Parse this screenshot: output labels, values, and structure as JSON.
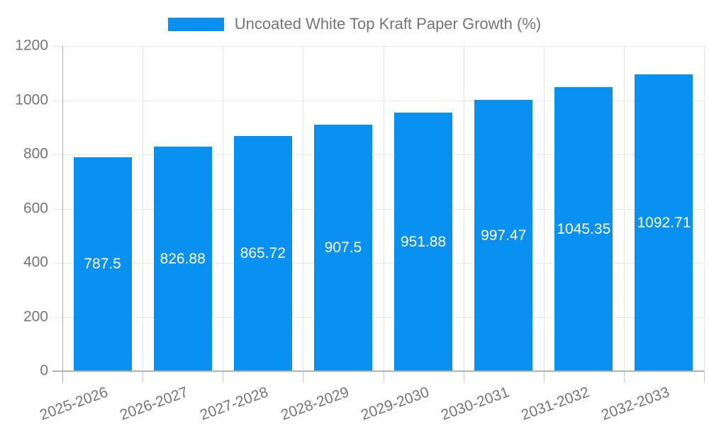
{
  "legend": {
    "label": "Uncoated White Top Kraft Paper Growth (%)"
  },
  "chart_data": {
    "type": "bar",
    "title": "Uncoated White Top Kraft Paper Growth (%)",
    "categories": [
      "2025-2026",
      "2026-2027",
      "2027-2028",
      "2028-2029",
      "2029-2030",
      "2030-2031",
      "2031-2032",
      "2032-2033"
    ],
    "values": [
      787.5,
      826.88,
      865.72,
      907.5,
      951.88,
      997.47,
      1045.35,
      1092.71
    ],
    "value_labels": [
      "787.5",
      "826.88",
      "865.72",
      "907.5",
      "951.88",
      "997.47",
      "1045.35",
      "1092.71"
    ],
    "xlabel": "",
    "ylabel": "",
    "ylim": [
      0,
      1200
    ],
    "y_ticks": [
      0,
      200,
      400,
      600,
      800,
      1000,
      1200
    ],
    "grid": true,
    "legend_position": "top-center",
    "bar_color": "#0991f2",
    "value_label_position": "inside-center"
  },
  "colors": {
    "bar": "#0991f2",
    "axis_text": "#757575",
    "value_text": "#ffffff",
    "gridline": "#e6e6e6",
    "axis_line": "#b2b2b2"
  }
}
